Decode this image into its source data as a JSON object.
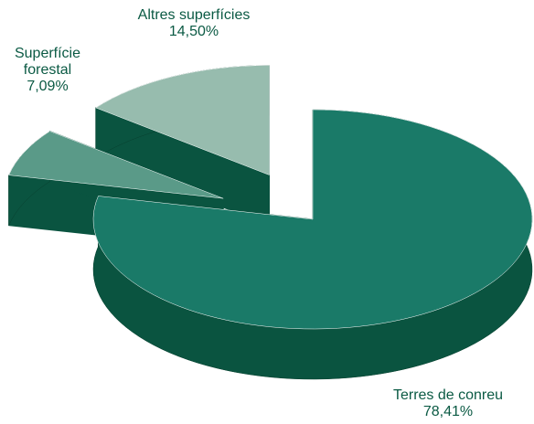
{
  "chart_data": {
    "type": "pie",
    "categories": [
      "Terres de conreu",
      "Superfície forestal",
      "Altres superfícies"
    ],
    "values": [
      78.41,
      7.09,
      14.5
    ],
    "value_labels": [
      "78,41%",
      "7,09%",
      "14,50%"
    ],
    "colors": [
      "#1a7a68",
      "#5a9a88",
      "#97bcae"
    ],
    "side_color": "#0a5440"
  }
}
